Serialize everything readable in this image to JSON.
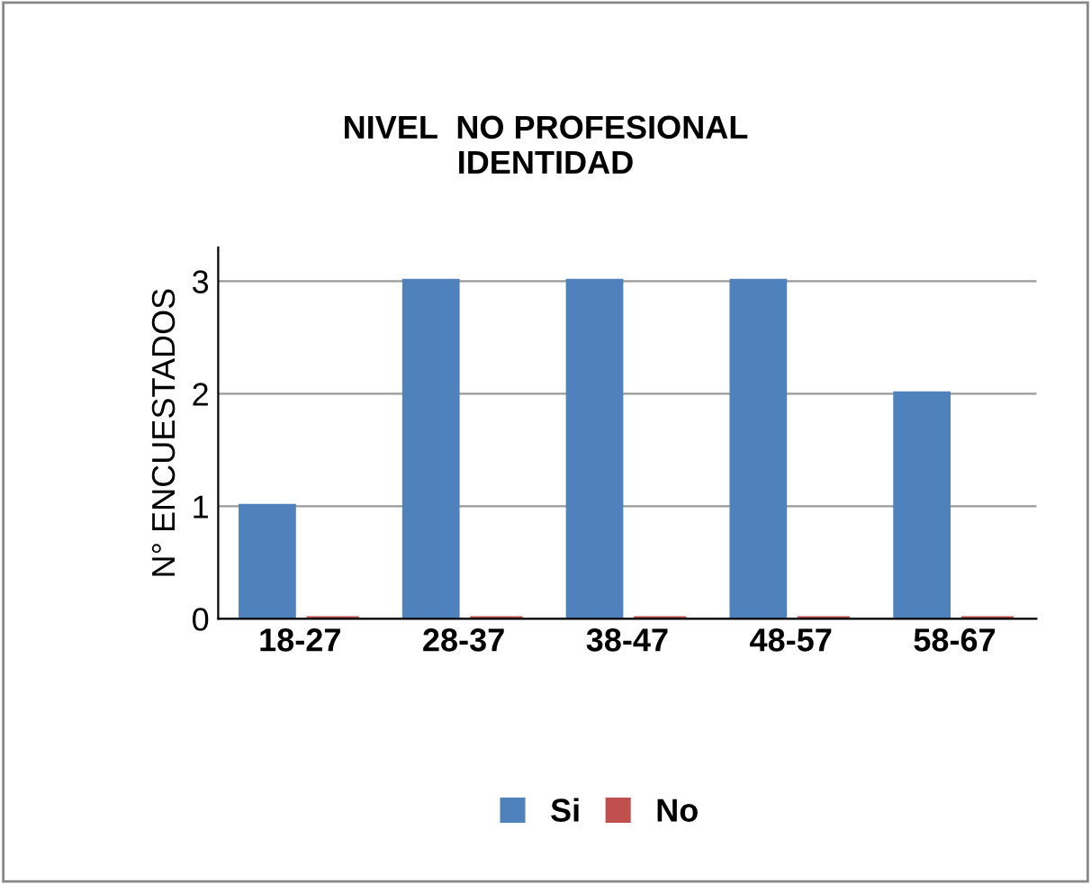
{
  "chart_data": {
    "type": "bar",
    "title": "NIVEL  NO PROFESIONAL\nIDENTIDAD",
    "ylabel": "N° ENCUESTADOS",
    "categories": [
      "18-27",
      "28-37",
      "38-47",
      "48-57",
      "58-67"
    ],
    "series": [
      {
        "name": "Si",
        "color": "#4f81bd",
        "values": [
          1,
          3,
          3,
          3,
          2
        ]
      },
      {
        "name": "No",
        "color": "#c0504d",
        "values": [
          0,
          0,
          0,
          0,
          0
        ]
      }
    ],
    "ylim": [
      0,
      3.3
    ],
    "yticks": [
      0,
      1,
      2,
      3
    ],
    "grid": "y",
    "legend": "bottom"
  }
}
